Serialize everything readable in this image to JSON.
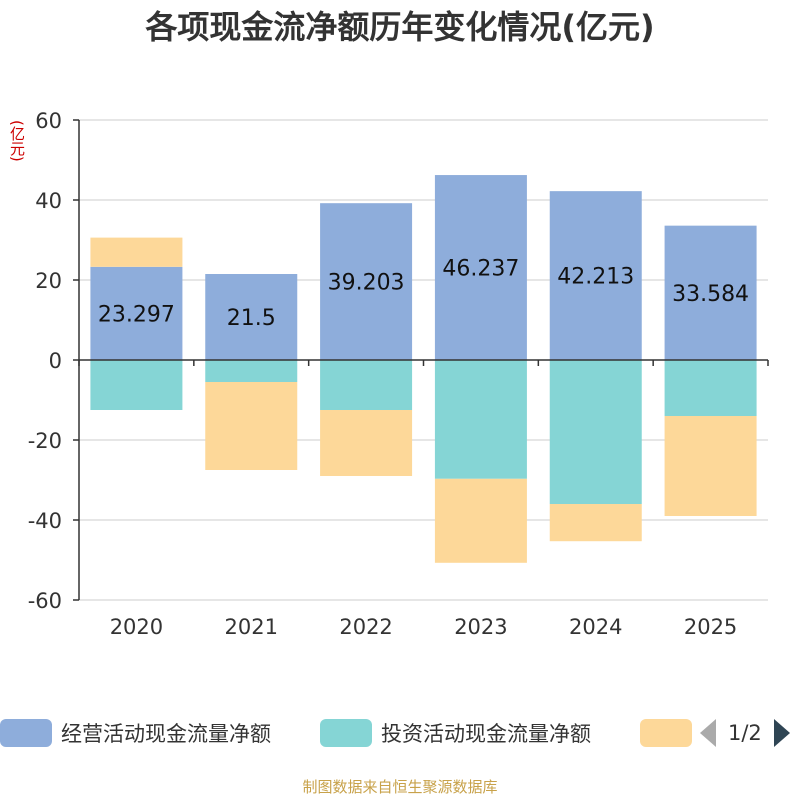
{
  "chart_data": {
    "type": "bar",
    "stacked": true,
    "title": "各项现金流净额历年变化情况(亿元)",
    "ylabel": "(亿元)",
    "xlabel": "",
    "categories": [
      "2020",
      "2021",
      "2022",
      "2023",
      "2024",
      "2025"
    ],
    "ylim": [
      -60,
      60
    ],
    "yticks": [
      60,
      40,
      20,
      0,
      -20,
      -40,
      -60
    ],
    "grid": true,
    "series": [
      {
        "name": "经营活动现金流量净额",
        "color": "#8eaddb",
        "values": [
          23.297,
          21.5,
          39.203,
          46.237,
          42.213,
          33.584
        ],
        "show_labels": true
      },
      {
        "name": "投资活动现金流量净额",
        "color": "#85d5d5",
        "values": [
          -12.5,
          -5.5,
          -12.5,
          -29.7,
          -36.0,
          -14.0
        ],
        "show_labels": false
      },
      {
        "name": "",
        "color": "#fdd899",
        "values": [
          7.3,
          -22.0,
          -16.5,
          -21.0,
          -9.3,
          -25.0
        ],
        "show_labels": false
      }
    ]
  },
  "legend": {
    "items": [
      {
        "label": "经营活动现金流量净额",
        "color": "#8eaddb"
      },
      {
        "label": "投资活动现金流量净额",
        "color": "#85d5d5"
      },
      {
        "label": "",
        "color": "#fdd899"
      }
    ],
    "page": "1/2"
  },
  "source": "制图数据来自恒生聚源数据库"
}
